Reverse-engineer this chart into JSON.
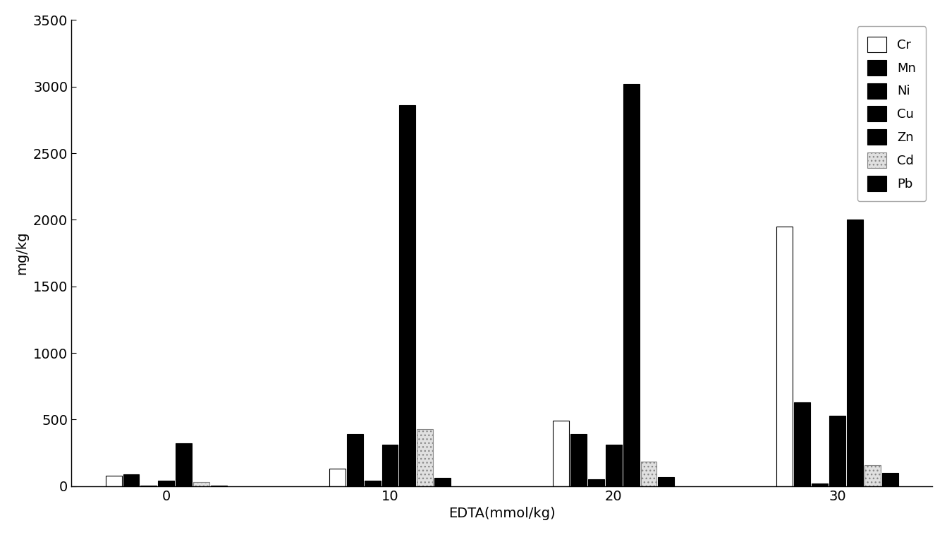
{
  "groups": [
    0,
    10,
    20,
    30
  ],
  "xlabel": "EDTA(mmol/kg)",
  "ylabel": "mg/kg",
  "ylim": [
    0,
    3500
  ],
  "yticks": [
    0,
    500,
    1000,
    1500,
    2000,
    2500,
    3000,
    3500
  ],
  "xticks": [
    0,
    10,
    20,
    30
  ],
  "metals": [
    "Cr",
    "Mn",
    "Ni",
    "Cu",
    "Zn",
    "Cd",
    "Pb"
  ],
  "colors": [
    "#ffffff",
    "#000000",
    "#000000",
    "#000000",
    "#000000",
    "#e0e0e0",
    "#000000"
  ],
  "hatches": [
    "",
    "",
    "",
    "",
    "",
    "...",
    ""
  ],
  "edgecolors": [
    "#000000",
    "#000000",
    "#000000",
    "#000000",
    "#000000",
    "#888888",
    "#000000"
  ],
  "data": {
    "0": [
      80,
      90,
      5,
      40,
      320,
      30,
      5
    ],
    "10": [
      130,
      390,
      40,
      310,
      2860,
      430,
      60
    ],
    "20": [
      490,
      390,
      50,
      310,
      3020,
      185,
      70
    ],
    "30": [
      1950,
      630,
      20,
      530,
      2000,
      160,
      100
    ]
  },
  "group_span": 5.5,
  "background_color": "#ffffff",
  "legend_loc": "upper right"
}
